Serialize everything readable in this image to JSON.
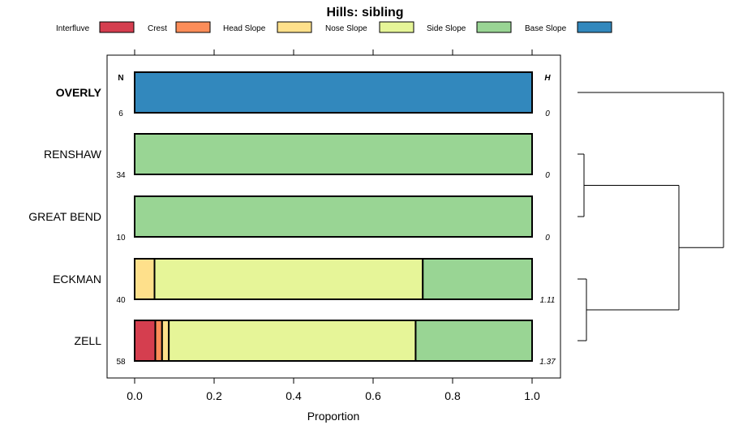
{
  "chart_data": {
    "type": "bar",
    "stacked": true,
    "orientation": "horizontal",
    "title": "Hills: sibling",
    "xlabel": "Proportion",
    "xlim": [
      0,
      1
    ],
    "xticks": [
      "0.0",
      "0.2",
      "0.4",
      "0.6",
      "0.8",
      "1.0"
    ],
    "n_header": "N",
    "h_header": "H",
    "legend_position": "top",
    "legend": [
      {
        "name": "Interfluve",
        "color": "#d53e4f"
      },
      {
        "name": "Crest",
        "color": "#fc8d59"
      },
      {
        "name": "Head Slope",
        "color": "#fee08b"
      },
      {
        "name": "Nose Slope",
        "color": "#e6f598"
      },
      {
        "name": "Side Slope",
        "color": "#99d594"
      },
      {
        "name": "Base Slope",
        "color": "#3288bd"
      }
    ],
    "categories": [
      {
        "label": "OVERLY",
        "bold": true,
        "n": "6",
        "h": "0",
        "values": [
          0,
          0,
          0,
          0,
          0,
          1.0
        ]
      },
      {
        "label": "RENSHAW",
        "bold": false,
        "n": "34",
        "h": "0",
        "values": [
          0,
          0,
          0,
          0,
          1.0,
          0
        ]
      },
      {
        "label": "GREAT BEND",
        "bold": false,
        "n": "10",
        "h": "0",
        "values": [
          0,
          0,
          0,
          0,
          1.0,
          0
        ]
      },
      {
        "label": "ECKMAN",
        "bold": false,
        "n": "40",
        "h": "1.11",
        "values": [
          0,
          0,
          0.05,
          0.675,
          0.275,
          0
        ]
      },
      {
        "label": "ZELL",
        "bold": false,
        "n": "58",
        "h": "1.37",
        "values": [
          0.052,
          0.017,
          0.017,
          0.621,
          0.293,
          0
        ]
      }
    ],
    "dendrogram": {
      "merges": [
        {
          "id": "RG",
          "children": [
            "RENSHAW",
            "GREAT BEND"
          ]
        },
        {
          "id": "EZ",
          "children": [
            "ECKMAN",
            "ZELL"
          ]
        },
        {
          "id": "RGEZ",
          "children": [
            "RG",
            "EZ"
          ]
        },
        {
          "id": "ALL",
          "children": [
            "OVERLY",
            "RGEZ"
          ]
        }
      ]
    }
  }
}
